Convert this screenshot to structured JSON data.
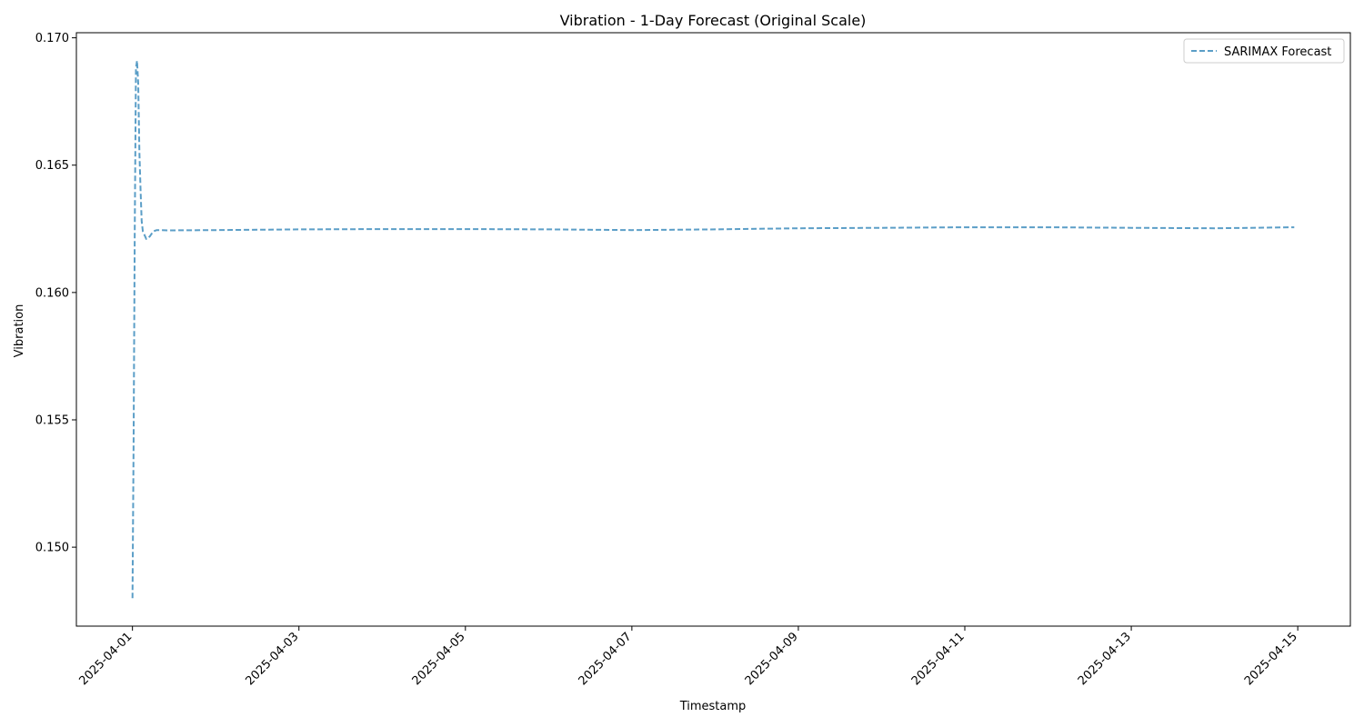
{
  "chart_data": {
    "type": "line",
    "title": "Vibration - 1-Day Forecast (Original Scale)",
    "xlabel": "Timestamp",
    "ylabel": "Vibration",
    "xlim": [
      "2025-03-31T07:50",
      "2025-04-15T15:10"
    ],
    "ylim": [
      0.1469,
      0.1702
    ],
    "grid": false,
    "legend_position": "top-right",
    "x_ticks": [
      "2025-04-01",
      "2025-04-03",
      "2025-04-05",
      "2025-04-07",
      "2025-04-09",
      "2025-04-11",
      "2025-04-13",
      "2025-04-15"
    ],
    "y_ticks": [
      "0.150",
      "0.155",
      "0.160",
      "0.165",
      "0.170"
    ],
    "series": [
      {
        "name": "SARIMAX Forecast",
        "color": "#5b9ec7",
        "style": "dashed",
        "x": [
          "2025-04-01T00:00",
          "2025-04-01T00:20",
          "2025-04-01T00:40",
          "2025-04-01T01:00",
          "2025-04-01T01:20",
          "2025-04-01T01:40",
          "2025-04-01T02:00",
          "2025-04-01T02:20",
          "2025-04-01T02:40",
          "2025-04-01T03:00",
          "2025-04-01T04:00",
          "2025-04-01T05:00",
          "2025-04-01T06:00",
          "2025-04-01T07:00",
          "2025-04-01T08:00",
          "2025-04-01T10:00",
          "2025-04-02T00:00",
          "2025-04-03T00:00",
          "2025-04-04T00:00",
          "2025-04-05T00:00",
          "2025-04-06T00:00",
          "2025-04-07T00:00",
          "2025-04-08T00:00",
          "2025-04-09T00:00",
          "2025-04-10T00:00",
          "2025-04-11T00:00",
          "2025-04-12T00:00",
          "2025-04-13T00:00",
          "2025-04-14T00:00",
          "2025-04-14T23:00"
        ],
        "y": [
          0.148,
          0.154,
          0.1625,
          0.1688,
          0.1691,
          0.1682,
          0.1655,
          0.164,
          0.1628,
          0.1624,
          0.1621,
          0.1622,
          0.1624,
          0.16245,
          0.16245,
          0.16244,
          0.16245,
          0.16248,
          0.16249,
          0.16249,
          0.16248,
          0.16245,
          0.16248,
          0.16252,
          0.16254,
          0.16256,
          0.16256,
          0.16254,
          0.16252,
          0.16256
        ]
      }
    ]
  }
}
